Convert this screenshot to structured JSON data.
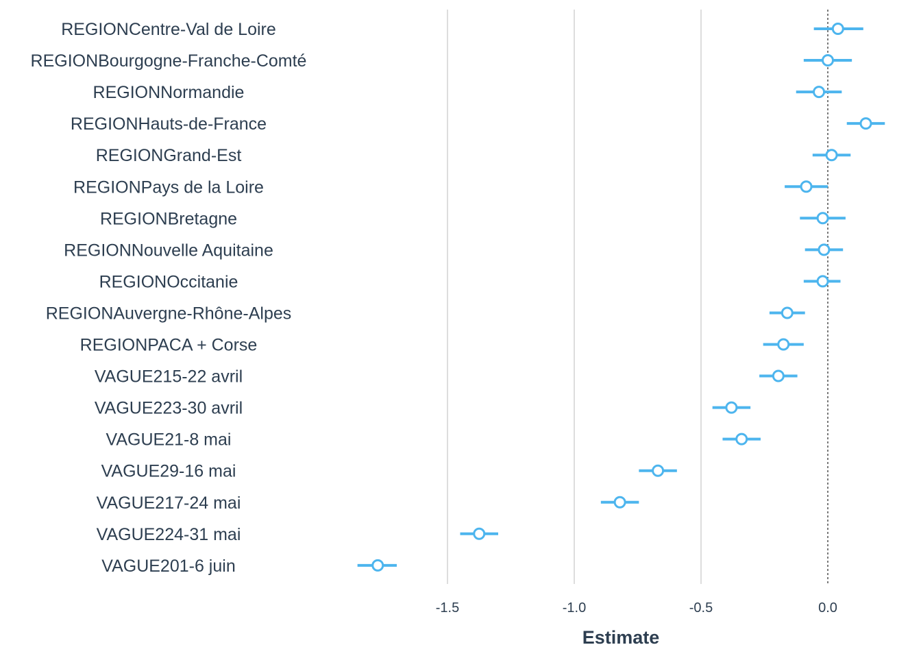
{
  "chart_data": {
    "type": "scatter",
    "subtype": "coefficient-plot",
    "xlabel": "Estimate",
    "ylabel": "",
    "xlim": [
      -1.9,
      0.27
    ],
    "xticks": [
      -1.5,
      -1.0,
      -0.5,
      0.0
    ],
    "xtick_labels": [
      "-1.5",
      "-1.0",
      "-0.5",
      "0.0"
    ],
    "reference_line": 0,
    "grid": "vertical major",
    "point_color": "#4db5ee",
    "terms": [
      {
        "label": "REGIONCentre-Val de Loire",
        "estimate": 0.04,
        "low": -0.055,
        "high": 0.14
      },
      {
        "label": "REGIONBourgogne-Franche-Comté",
        "estimate": 0.0,
        "low": -0.095,
        "high": 0.095
      },
      {
        "label": "REGIONNormandie",
        "estimate": -0.035,
        "low": -0.125,
        "high": 0.055
      },
      {
        "label": "REGIONHauts-de-France",
        "estimate": 0.15,
        "low": 0.075,
        "high": 0.225
      },
      {
        "label": "REGIONGrand-Est",
        "estimate": 0.015,
        "low": -0.06,
        "high": 0.09
      },
      {
        "label": "REGIONPays de la Loire",
        "estimate": -0.085,
        "low": -0.17,
        "high": 0.0
      },
      {
        "label": "REGIONBretagne",
        "estimate": -0.02,
        "low": -0.11,
        "high": 0.07
      },
      {
        "label": "REGIONNouvelle Aquitaine",
        "estimate": -0.015,
        "low": -0.09,
        "high": 0.06
      },
      {
        "label": "REGIONOccitanie",
        "estimate": -0.02,
        "low": -0.095,
        "high": 0.05
      },
      {
        "label": "REGIONAuvergne-Rhône-Alpes",
        "estimate": -0.16,
        "low": -0.23,
        "high": -0.09
      },
      {
        "label": "REGIONPACA + Corse",
        "estimate": -0.175,
        "low": -0.255,
        "high": -0.095
      },
      {
        "label": "VAGUE215-22 avril",
        "estimate": -0.195,
        "low": -0.27,
        "high": -0.12
      },
      {
        "label": "VAGUE223-30 avril",
        "estimate": -0.38,
        "low": -0.455,
        "high": -0.305
      },
      {
        "label": "VAGUE21-8 mai",
        "estimate": -0.34,
        "low": -0.415,
        "high": -0.265
      },
      {
        "label": "VAGUE29-16 mai",
        "estimate": -0.67,
        "low": -0.745,
        "high": -0.595
      },
      {
        "label": "VAGUE217-24 mai",
        "estimate": -0.82,
        "low": -0.895,
        "high": -0.745
      },
      {
        "label": "VAGUE224-31 mai",
        "estimate": -1.375,
        "low": -1.45,
        "high": -1.3
      },
      {
        "label": "VAGUE201-6 juin",
        "estimate": -1.775,
        "low": -1.855,
        "high": -1.7
      }
    ]
  }
}
